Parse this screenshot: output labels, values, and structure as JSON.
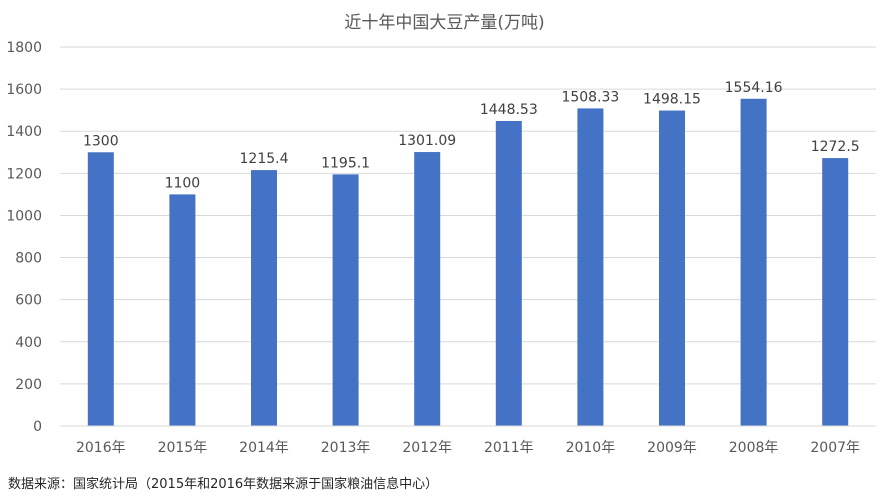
{
  "chart_data": {
    "type": "bar",
    "title": "近十年中国大豆产量(万吨)",
    "categories": [
      "2016年",
      "2015年",
      "2014年",
      "2013年",
      "2012年",
      "2011年",
      "2010年",
      "2009年",
      "2008年",
      "2007年"
    ],
    "values": [
      1300,
      1100,
      1215.4,
      1195.1,
      1301.09,
      1448.53,
      1508.33,
      1498.15,
      1554.16,
      1272.5
    ],
    "data_labels": [
      "1300",
      "1100",
      "1215.4",
      "1195.1",
      "1301.09",
      "1448.53",
      "1508.33",
      "1498.15",
      "1554.16",
      "1272.5"
    ],
    "ylim": [
      0,
      1800
    ],
    "yticks": [
      0,
      200,
      400,
      600,
      800,
      1000,
      1200,
      1400,
      1600,
      1800
    ],
    "xlabel": "",
    "ylabel": "",
    "grid": true,
    "bar_color": "#4472C4",
    "legend": "none"
  },
  "footer": {
    "source_note": "数据来源：国家统计局（2015年和2016年数据来源于国家粮油信息中心）"
  }
}
